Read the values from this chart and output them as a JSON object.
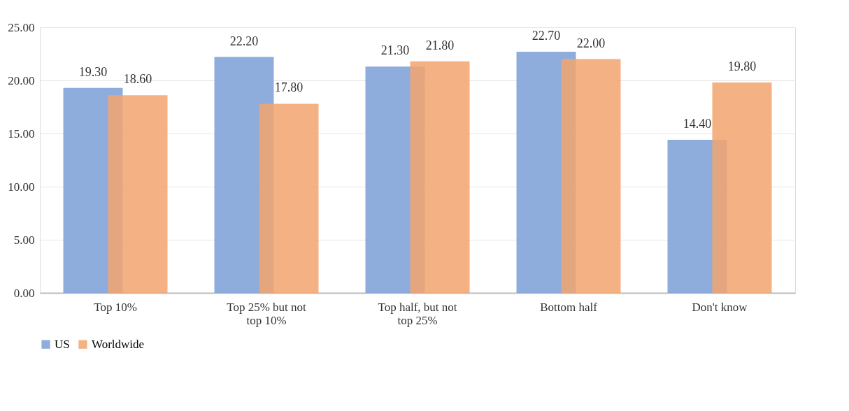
{
  "chart_data": {
    "type": "bar",
    "categories": [
      "Top 10%",
      "Top 25% but not top 10%",
      "Top half, but not top 25%",
      "Bottom half",
      "Don't know"
    ],
    "series": [
      {
        "name": "US",
        "color": "#7a9fd6",
        "values": [
          19.3,
          22.2,
          21.3,
          22.7,
          14.4
        ],
        "value_labels": [
          "19.30",
          "22.20",
          "21.30",
          "22.70",
          "14.40"
        ]
      },
      {
        "name": "Worldwide",
        "color": "#f2a46e",
        "values": [
          18.6,
          17.8,
          21.8,
          22.0,
          19.8
        ],
        "value_labels": [
          "18.60",
          "17.80",
          "21.80",
          "22.00",
          "19.80"
        ]
      }
    ],
    "ylim": [
      0,
      25
    ],
    "yticks": [
      {
        "value": 0,
        "label": "0.00"
      },
      {
        "value": 5,
        "label": "5.00"
      },
      {
        "value": 10,
        "label": "10.00"
      },
      {
        "value": 15,
        "label": "15.00"
      },
      {
        "value": 20,
        "label": "20.00"
      },
      {
        "value": 25,
        "label": "25.00"
      }
    ],
    "grid": "y",
    "legend": "bottom"
  }
}
